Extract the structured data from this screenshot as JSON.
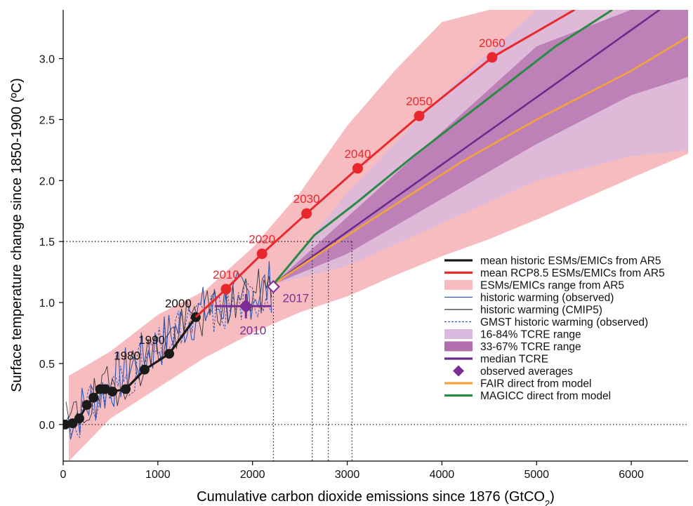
{
  "chart_data": {
    "type": "line",
    "title": "",
    "xlabel": "Cumulative carbon dioxide emissions since 1876 (GtCO",
    "xlabel_sub": "2",
    "xlabel_close": ")",
    "ylabel": "Surface temperature change since 1850-1900 (ºC)",
    "xlim": [
      0,
      6600
    ],
    "ylim": [
      -0.3,
      3.4
    ],
    "xticks": [
      0,
      1000,
      2000,
      3000,
      4000,
      5000,
      6000
    ],
    "yticks": [
      0.0,
      0.5,
      1.0,
      1.5,
      2.0,
      2.5,
      3.0
    ],
    "ytick_labels": [
      "0.0",
      "0.5",
      "1.0",
      "1.5",
      "2.0",
      "2.5",
      "3.0"
    ],
    "grid": false,
    "legend_position": "right",
    "colors": {
      "historic_mean": "#1a1a1a",
      "rcp85_mean": "#e8282d",
      "ar5_range": "#f7bcbf",
      "observed": "#2f57b3",
      "cmip5": "#333333",
      "tcre_16_84": "#d9b9dc",
      "tcre_33_67": "#b16fae",
      "median_tcre": "#6b2a8c",
      "observed_avg": "#7b2d95",
      "fair": "#f4a33a",
      "magicc": "#2a8a45"
    },
    "series": [
      {
        "name": "mean historic ESMs/EMICs from AR5",
        "labels": [
          "1980",
          "1990",
          "2000"
        ],
        "x": [
          20,
          100,
          170,
          250,
          320,
          390,
          440,
          520,
          660,
          860,
          1120,
          1400
        ],
        "y": [
          0.0,
          0.01,
          0.05,
          0.16,
          0.22,
          0.29,
          0.29,
          0.27,
          0.29,
          0.45,
          0.58,
          0.88
        ]
      },
      {
        "name": "mean RCP8.5 ESMs/EMICs from AR5",
        "labels": [
          "2010",
          "2020",
          "2030",
          "2040",
          "2050",
          "2060"
        ],
        "x": [
          1720,
          2100,
          2570,
          3110,
          3760,
          4530,
          5400
        ],
        "y": [
          1.11,
          1.4,
          1.73,
          2.1,
          2.53,
          3.01,
          3.4
        ]
      },
      {
        "name": "median TCRE",
        "x": [
          2220,
          6300
        ],
        "y": [
          1.15,
          3.4
        ]
      },
      {
        "name": "FAIR direct from model",
        "x": [
          2220,
          2800,
          3500,
          4200,
          5000,
          6000,
          6600
        ],
        "y": [
          1.15,
          1.45,
          1.8,
          2.15,
          2.5,
          2.9,
          3.18
        ]
      },
      {
        "name": "MAGICC direct from model",
        "x": [
          2220,
          2650,
          3100,
          3700,
          4400,
          5200,
          5800
        ],
        "y": [
          1.15,
          1.55,
          1.82,
          2.2,
          2.62,
          3.1,
          3.4
        ]
      }
    ],
    "bands": [
      {
        "name": "ESMs/EMICs range from AR5",
        "x": [
          60,
          500,
          1000,
          1500,
          2000,
          2500,
          3000,
          3500,
          4000,
          4500,
          5000,
          5500,
          6000,
          6600
        ],
        "upper": [
          0.4,
          0.6,
          0.9,
          1.1,
          1.45,
          1.9,
          2.45,
          2.9,
          3.3,
          3.4,
          3.4,
          3.4,
          3.4,
          3.4
        ],
        "lower": [
          -0.3,
          0.05,
          0.3,
          0.55,
          0.75,
          0.92,
          1.05,
          1.22,
          1.38,
          1.52,
          1.68,
          1.85,
          2.02,
          2.22
        ]
      },
      {
        "name": "16-84% TCRE range",
        "x": [
          2220,
          3000,
          4000,
          5000,
          6000,
          6600
        ],
        "upper": [
          1.15,
          1.9,
          2.7,
          3.4,
          3.4,
          3.4
        ],
        "lower": [
          1.15,
          1.3,
          1.65,
          2.0,
          2.2,
          2.25
        ]
      },
      {
        "name": "33-67% TCRE range",
        "x": [
          2220,
          3000,
          4000,
          5000,
          6000,
          6600
        ],
        "upper": [
          1.15,
          1.7,
          2.4,
          3.1,
          3.4,
          3.4
        ],
        "lower": [
          1.15,
          1.4,
          1.85,
          2.3,
          2.7,
          2.85
        ]
      }
    ],
    "observed_averages": [
      {
        "label": "2010",
        "x": 1930,
        "y": 0.97,
        "xerr_low": 1600,
        "xerr_high": 2200,
        "yerr_low": 0.87,
        "yerr_high": 1.07
      },
      {
        "label": "2017",
        "x": 2220,
        "y": 1.13
      }
    ],
    "reference_lines": {
      "horizontal": [
        0.0,
        1.5
      ],
      "vertical": [
        2220,
        2630,
        2800,
        3050
      ]
    },
    "legend": [
      {
        "label": "mean historic ESMs/EMICs from AR5",
        "symbol": "line-thick",
        "color": "#1a1a1a"
      },
      {
        "label": "mean RCP8.5 ESMs/EMICs from AR5",
        "symbol": "line-thick",
        "color": "#e8282d"
      },
      {
        "label": "ESMs/EMICs range from AR5",
        "symbol": "patch",
        "color": "#f7bcbf"
      },
      {
        "label": "historic warming (observed)",
        "symbol": "line-thin",
        "color": "#2f57b3"
      },
      {
        "label": "historic warming (CMIP5)",
        "symbol": "line-thin",
        "color": "#333333"
      },
      {
        "label": "GMST historic warming (observed)",
        "symbol": "line-dashed",
        "color": "#2f57b3"
      },
      {
        "label": "16-84% TCRE range",
        "symbol": "patch",
        "color": "#d9b9dc"
      },
      {
        "label": "33-67% TCRE range",
        "symbol": "patch",
        "color": "#b16fae"
      },
      {
        "label": "median TCRE",
        "symbol": "line-thick",
        "color": "#6b2a8c"
      },
      {
        "label": "observed averages",
        "symbol": "diamond",
        "color": "#7b2d95"
      },
      {
        "label": "FAIR direct from model",
        "symbol": "line-thick",
        "color": "#f4a33a"
      },
      {
        "label": "MAGICC direct from model",
        "symbol": "line-thick",
        "color": "#2a8a45"
      }
    ]
  }
}
